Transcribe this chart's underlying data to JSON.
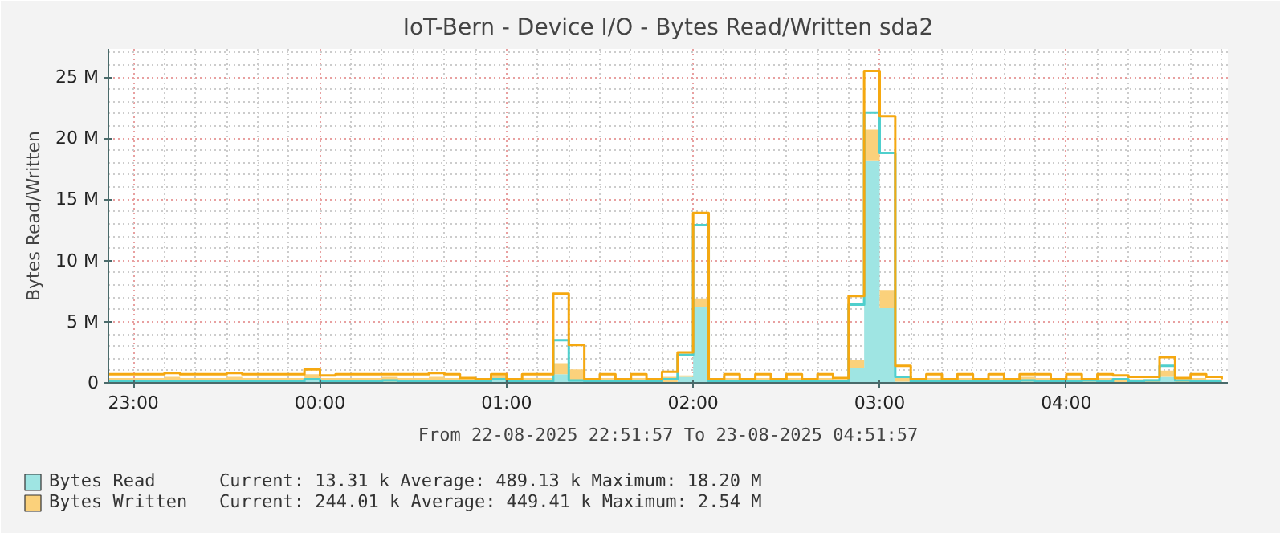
{
  "chart_data": {
    "type": "area",
    "title": "IoT-Bern - Device I/O - Bytes Read/Written sda2",
    "xlabel": "From 22-08-2025 22:51:57 To 23-08-2025 04:51:57",
    "ylabel": "Bytes Read/Written",
    "stacked": true,
    "grid": true,
    "legend": "bottom",
    "xlim": [
      "2025-08-22T22:51:57",
      "2025-08-23T04:51:57"
    ],
    "ylim": [
      0,
      27.3
    ],
    "xticks": [
      {
        "value": "2025-08-22T23:00",
        "label": "23:00"
      },
      {
        "value": "2025-08-23T00:00",
        "label": "00:00"
      },
      {
        "value": "2025-08-23T01:00",
        "label": "01:00"
      },
      {
        "value": "2025-08-23T02:00",
        "label": "02:00"
      },
      {
        "value": "2025-08-23T03:00",
        "label": "03:00"
      },
      {
        "value": "2025-08-23T04:00",
        "label": "04:00"
      }
    ],
    "yticks": [
      {
        "value": 0,
        "label": "0"
      },
      {
        "value": 5,
        "label": "5 M"
      },
      {
        "value": 10,
        "label": "10 M"
      },
      {
        "value": 15,
        "label": "15 M"
      },
      {
        "value": 20,
        "label": "20 M"
      },
      {
        "value": 25,
        "label": "25 M"
      }
    ],
    "x": [
      "2025-08-22T22:51:57",
      "2025-08-22T22:55",
      "2025-08-22T23:00",
      "2025-08-22T23:05",
      "2025-08-22T23:10",
      "2025-08-22T23:15",
      "2025-08-22T23:20",
      "2025-08-22T23:25",
      "2025-08-22T23:30",
      "2025-08-22T23:35",
      "2025-08-22T23:40",
      "2025-08-22T23:45",
      "2025-08-22T23:50",
      "2025-08-22T23:55",
      "2025-08-23T00:00",
      "2025-08-23T00:05",
      "2025-08-23T00:10",
      "2025-08-23T00:15",
      "2025-08-23T00:20",
      "2025-08-23T00:25",
      "2025-08-23T00:30",
      "2025-08-23T00:35",
      "2025-08-23T00:40",
      "2025-08-23T00:45",
      "2025-08-23T00:50",
      "2025-08-23T00:55",
      "2025-08-23T01:00",
      "2025-08-23T01:05",
      "2025-08-23T01:10",
      "2025-08-23T01:15",
      "2025-08-23T01:20",
      "2025-08-23T01:25",
      "2025-08-23T01:30",
      "2025-08-23T01:35",
      "2025-08-23T01:40",
      "2025-08-23T01:45",
      "2025-08-23T01:50",
      "2025-08-23T01:55",
      "2025-08-23T02:00",
      "2025-08-23T02:05",
      "2025-08-23T02:10",
      "2025-08-23T02:15",
      "2025-08-23T02:20",
      "2025-08-23T02:25",
      "2025-08-23T02:30",
      "2025-08-23T02:35",
      "2025-08-23T02:40",
      "2025-08-23T02:45",
      "2025-08-23T02:50",
      "2025-08-23T02:55",
      "2025-08-23T03:00",
      "2025-08-23T03:05",
      "2025-08-23T03:10",
      "2025-08-23T03:15",
      "2025-08-23T03:20",
      "2025-08-23T03:25",
      "2025-08-23T03:30",
      "2025-08-23T03:35",
      "2025-08-23T03:40",
      "2025-08-23T03:45",
      "2025-08-23T03:50",
      "2025-08-23T03:55",
      "2025-08-23T04:00",
      "2025-08-23T04:05",
      "2025-08-23T04:10",
      "2025-08-23T04:15",
      "2025-08-23T04:20",
      "2025-08-23T04:25",
      "2025-08-23T04:30",
      "2025-08-23T04:35",
      "2025-08-23T04:40",
      "2025-08-23T04:45",
      "2025-08-23T04:50"
    ],
    "series": [
      {
        "name": "Bytes Read",
        "color": "#9fe5e3",
        "values": [
          0,
          0,
          0,
          0,
          0,
          0,
          0,
          0,
          0,
          0,
          0,
          0,
          0,
          0.2,
          0,
          0,
          0,
          0,
          0.1,
          0,
          0,
          0,
          0,
          0,
          0,
          0.2,
          0,
          0,
          0,
          0.7,
          0.2,
          0,
          0,
          0,
          0,
          0,
          0,
          0.5,
          6.2,
          0,
          0,
          0,
          0,
          0,
          0,
          0,
          0,
          0,
          1.2,
          18.2,
          6.1,
          0.1,
          0,
          0,
          0,
          0,
          0,
          0,
          0,
          0.1,
          0,
          0,
          0,
          0.1,
          0,
          0,
          0,
          0,
          0.5,
          0,
          0,
          0,
          0
        ]
      },
      {
        "name": "Bytes Written",
        "color": "#fbd17b",
        "values": [
          0.4,
          0.4,
          0.4,
          0.4,
          0.5,
          0.4,
          0.4,
          0.4,
          0.5,
          0.4,
          0.4,
          0.4,
          0.4,
          0.5,
          0.4,
          0.4,
          0.4,
          0.4,
          0.4,
          0.4,
          0.4,
          0.5,
          0.4,
          0.3,
          0.2,
          0.4,
          0.2,
          0.4,
          0.4,
          0.9,
          0.9,
          0.2,
          0.4,
          0.2,
          0.4,
          0.2,
          0.5,
          0.1,
          0.7,
          0.2,
          0.4,
          0.2,
          0.4,
          0.2,
          0.4,
          0.2,
          0.4,
          0.2,
          0.7,
          2.5,
          1.5,
          0.4,
          0.2,
          0.4,
          0.2,
          0.4,
          0.2,
          0.4,
          0.2,
          0.4,
          0.4,
          0.2,
          0.4,
          0.2,
          0.4,
          0.4,
          0.3,
          0.3,
          0.5,
          0.2,
          0.4,
          0.3,
          0.2
        ]
      },
      {
        "type": "step",
        "color": "#4fcfcd",
        "values": [
          0.1,
          0.1,
          0.1,
          0.1,
          0.1,
          0.1,
          0.1,
          0.1,
          0.1,
          0.1,
          0.1,
          0.1,
          0.1,
          0.3,
          0.1,
          0.1,
          0.1,
          0.1,
          0.2,
          0.1,
          0.1,
          0.1,
          0.1,
          0.1,
          0.1,
          0.3,
          0.1,
          0.1,
          0.1,
          3.5,
          0.2,
          0.1,
          0.1,
          0.1,
          0.1,
          0.1,
          0.3,
          2.3,
          12.9,
          0.1,
          0.1,
          0.1,
          0.1,
          0.1,
          0.1,
          0.1,
          0.1,
          0.1,
          6.4,
          22.1,
          18.8,
          0.5,
          0.1,
          0.1,
          0.1,
          0.1,
          0.1,
          0.1,
          0.1,
          0.2,
          0.1,
          0.1,
          0.1,
          0.2,
          0.1,
          0.3,
          0.1,
          0.2,
          1.4,
          0.2,
          0.1,
          0.1,
          0.1
        ]
      },
      {
        "type": "step",
        "color": "#f5a810",
        "values": [
          0.7,
          0.7,
          0.7,
          0.7,
          0.8,
          0.7,
          0.7,
          0.7,
          0.8,
          0.7,
          0.7,
          0.7,
          0.7,
          1.1,
          0.6,
          0.7,
          0.7,
          0.7,
          0.7,
          0.7,
          0.7,
          0.8,
          0.7,
          0.4,
          0.3,
          0.7,
          0.3,
          0.7,
          0.7,
          7.3,
          3.1,
          0.3,
          0.7,
          0.3,
          0.7,
          0.3,
          0.9,
          2.5,
          13.9,
          0.3,
          0.7,
          0.3,
          0.7,
          0.3,
          0.7,
          0.3,
          0.7,
          0.4,
          7.1,
          25.5,
          21.8,
          1.4,
          0.3,
          0.7,
          0.3,
          0.7,
          0.3,
          0.7,
          0.3,
          0.7,
          0.7,
          0.3,
          0.7,
          0.3,
          0.7,
          0.6,
          0.5,
          0.5,
          2.1,
          0.4,
          0.7,
          0.5,
          0.3
        ]
      }
    ],
    "annotations": [
      "Current:   13.31 k   Average:   489.13 k   Maximum:   18.20 M",
      "Current:  244.01 k   Average:   449.41 k   Maximum:    2.54 M"
    ]
  }
}
